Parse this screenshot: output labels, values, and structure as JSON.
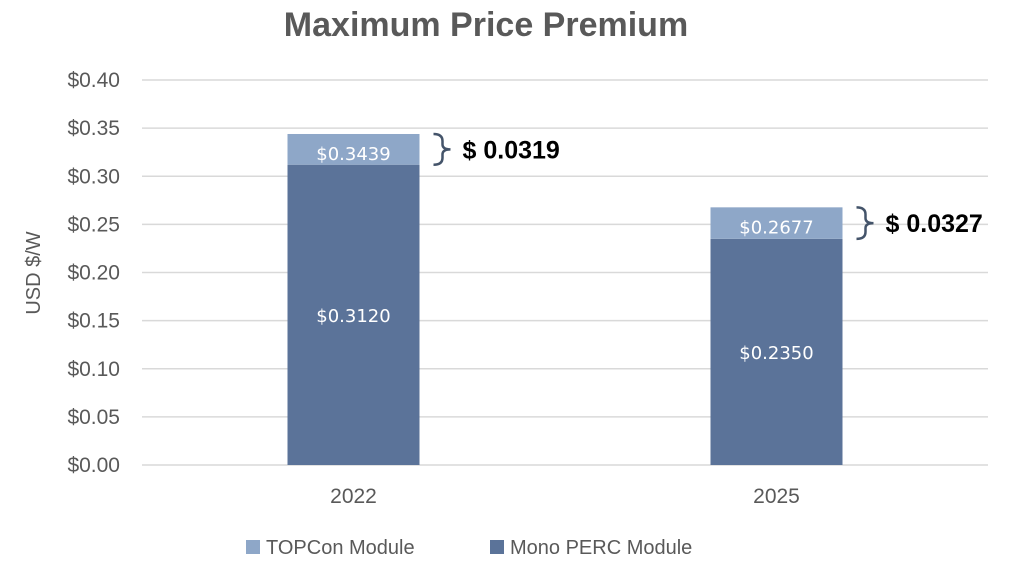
{
  "chart_data": {
    "type": "bar",
    "stacked": true,
    "title": "Maximum Price Premium",
    "xlabel": "",
    "ylabel": "USD $/W",
    "categories": [
      "2022",
      "2025"
    ],
    "ylim": [
      0,
      0.4
    ],
    "yticks": [
      0,
      0.05,
      0.1,
      0.15,
      0.2,
      0.25,
      0.3,
      0.35,
      0.4
    ],
    "ytick_labels": [
      "$0.00",
      "$0.05",
      "$0.10",
      "$0.15",
      "$0.20",
      "$0.25",
      "$0.30",
      "$0.35",
      "$0.40"
    ],
    "grid": true,
    "legend_position": "bottom",
    "series": [
      {
        "name": "Mono PERC Module",
        "values": [
          0.312,
          0.235
        ],
        "labels": [
          "$0.3120",
          "$0.2350"
        ],
        "color": "#5b7399"
      },
      {
        "name": "TOPCon Module",
        "values": [
          0.0319,
          0.0327
        ],
        "labels": [
          "$0.3439",
          "$0.2677"
        ],
        "color": "#8ea7c8"
      }
    ],
    "legend": [
      {
        "name": "TOPCon Module",
        "color": "#8ea7c8"
      },
      {
        "name": "Mono PERC Module",
        "color": "#5b7399"
      }
    ],
    "annotations": [
      {
        "text": "$ 0.0319",
        "category": "2022",
        "range": [
          0.312,
          0.3439
        ]
      },
      {
        "text": "$ 0.0327",
        "category": "2025",
        "range": [
          0.235,
          0.2677
        ]
      }
    ]
  }
}
